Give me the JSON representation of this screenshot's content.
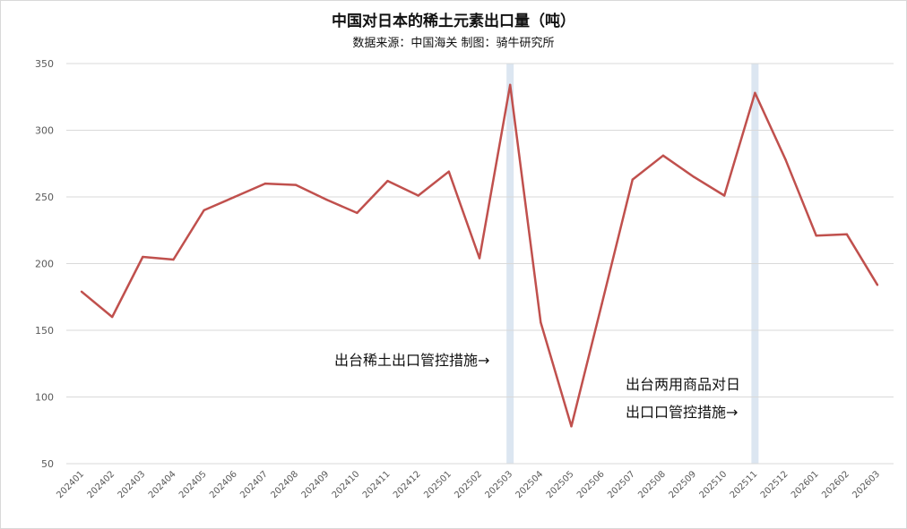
{
  "chart_data": {
    "type": "line",
    "title": "中国对日本的稀土元素出口量（吨）",
    "subtitle": "数据来源：中国海关  制图：骑牛研究所",
    "categories": [
      "202401",
      "202402",
      "202403",
      "202404",
      "202405",
      "202406",
      "202407",
      "202408",
      "202409",
      "202410",
      "202411",
      "202412",
      "202501",
      "202502",
      "202503",
      "202504",
      "202505",
      "202506",
      "202507",
      "202508",
      "202509",
      "202510",
      "202511",
      "202512",
      "202601",
      "202602",
      "202603"
    ],
    "series": [
      {
        "values": [
          179,
          160,
          205,
          203,
          240,
          250,
          260,
          259,
          248,
          238,
          262,
          251,
          269,
          204,
          334,
          156,
          78,
          170,
          263,
          281,
          265,
          251,
          328,
          278,
          221,
          222,
          184
        ]
      }
    ],
    "ylim": [
      50,
      350
    ],
    "yticks": [
      50,
      100,
      150,
      200,
      250,
      300,
      350
    ],
    "grid": true,
    "legend": "none",
    "colors": {
      "line": "#c0504d",
      "grid": "#d9d9d9",
      "highlight": "#dce6f1"
    },
    "highlights": [
      "202503",
      "202511"
    ],
    "annotations": [
      {
        "lines": [
          "出台稀土出口管控措施→"
        ]
      },
      {
        "lines": [
          "出台两用商品对日",
          "出口口管控措施→"
        ]
      }
    ]
  }
}
